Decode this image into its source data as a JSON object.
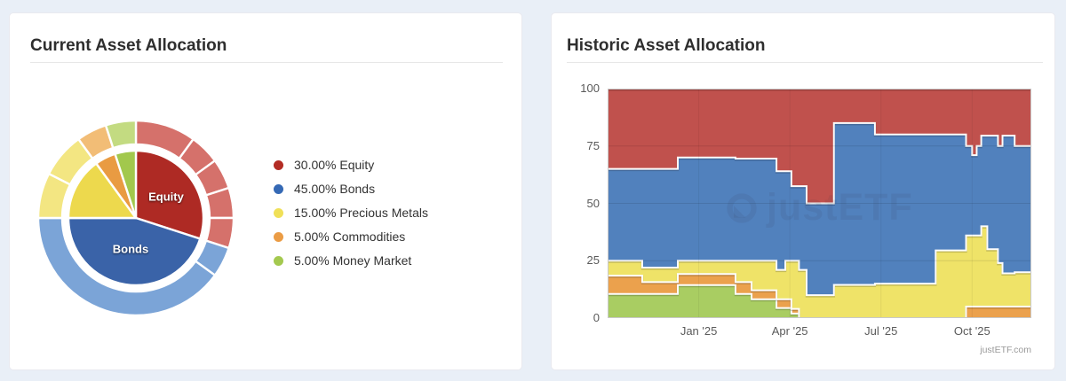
{
  "left_card": {
    "title": "Current Asset Allocation"
  },
  "right_card": {
    "title": "Historic Asset Allocation",
    "watermark": "justETF",
    "attribution": "justETF.com"
  },
  "chart_data": [
    {
      "type": "pie",
      "title": "Current Asset Allocation",
      "style": "sunburst-donut",
      "slices": [
        {
          "label": "Equity",
          "pct": 30,
          "legend_label": "30.00% Equity",
          "color": "#ae2a24",
          "light": "#d5716b",
          "legend_color": "#b32c24",
          "children_pct": [
            10,
            5,
            5,
            5,
            5
          ]
        },
        {
          "label": "Bonds",
          "pct": 45,
          "legend_label": "45.00% Bonds",
          "color": "#3a63a8",
          "light": "#7ba4d7",
          "legend_color": "#3569b5",
          "children_pct": [
            5,
            40
          ]
        },
        {
          "label": "Precious Metals",
          "pct": 15,
          "legend_label": "15.00% Precious Metals",
          "color": "#edd94d",
          "light": "#f3e682",
          "legend_color": "#f0e058",
          "children_pct": [
            7.5,
            7.5
          ]
        },
        {
          "label": "Commodities",
          "pct": 5,
          "legend_label": "5.00% Commodities",
          "color": "#e99b42",
          "light": "#f2bd76",
          "legend_color": "#eb9c45",
          "children_pct": [
            5
          ]
        },
        {
          "label": "Money Market",
          "pct": 5,
          "legend_label": "5.00% Money Market",
          "color": "#a2c84d",
          "light": "#c3db81",
          "legend_color": "#a4c94f",
          "children_pct": [
            5
          ]
        }
      ],
      "labels_shown_in_chart": [
        "Equity",
        "Bonds"
      ]
    },
    {
      "type": "area",
      "title": "Historic Asset Allocation",
      "stacked": true,
      "ylim": [
        0,
        100
      ],
      "xlim": [
        0,
        13.95
      ],
      "grid": true,
      "legend_position": "none",
      "yticks": [
        100,
        75,
        50,
        25,
        0
      ],
      "xticks": [
        {
          "x": 3,
          "label": "Jan '25"
        },
        {
          "x": 6,
          "label": "Apr '25"
        },
        {
          "x": 9,
          "label": "Jul '25"
        },
        {
          "x": 12,
          "label": "Oct '25"
        }
      ],
      "x": [
        0,
        1.14,
        1.14,
        2.31,
        2.31,
        4.21,
        4.21,
        4.74,
        4.74,
        5.56,
        5.56,
        5.85,
        5.85,
        6.05,
        6.05,
        6.3,
        6.3,
        6.55,
        6.55,
        7.45,
        7.45,
        8.8,
        8.8,
        10.8,
        10.8,
        11.8,
        11.8,
        12.0,
        12.0,
        12.15,
        12.15,
        12.3,
        12.3,
        12.5,
        12.5,
        12.85,
        12.85,
        13.0,
        13.0,
        13.4,
        13.4,
        13.95
      ],
      "series": [
        {
          "name": "Money Market",
          "color": "#a9cd62",
          "values": [
            10.5,
            10.5,
            10.5,
            10.5,
            14.4,
            14.4,
            10.5,
            10.5,
            8.2,
            8.2,
            4.4,
            4.4,
            4.4,
            4.4,
            2,
            2,
            0,
            0,
            0,
            0,
            0,
            0,
            0,
            0,
            0,
            0,
            0,
            0,
            0,
            0,
            0,
            0,
            0,
            0,
            0,
            0,
            0,
            0,
            0,
            0,
            0,
            0
          ]
        },
        {
          "name": "Commodities",
          "color": "#eba14d",
          "values": [
            8,
            8,
            5.2,
            5.2,
            4.8,
            4.8,
            5.2,
            5.2,
            3.9,
            3.9,
            3.8,
            3.8,
            3.8,
            3.8,
            2,
            2,
            0,
            0,
            0,
            0,
            0,
            0,
            0,
            0,
            0,
            0,
            5,
            5,
            5,
            5,
            5,
            5,
            5,
            5,
            5,
            5,
            5,
            5,
            5,
            5,
            5,
            5
          ]
        },
        {
          "name": "Precious Metals",
          "color": "#efe368",
          "values": [
            6.5,
            6.5,
            6.3,
            6.3,
            5.8,
            5.8,
            9.3,
            9.3,
            12.9,
            12.9,
            12.8,
            12.8,
            16.8,
            16.8,
            21,
            21,
            21,
            21,
            10,
            10,
            14.5,
            14.5,
            15,
            15,
            29.5,
            29.5,
            31,
            31,
            31,
            31,
            31,
            31,
            35,
            35,
            25,
            25,
            19,
            19,
            14.5,
            14.5,
            15,
            15
          ]
        },
        {
          "name": "Bonds",
          "color": "#5181bd",
          "values": [
            40,
            40,
            43,
            43,
            45,
            45,
            44.5,
            44.5,
            44.5,
            44.5,
            43,
            43,
            39,
            39,
            32.5,
            32.5,
            36.5,
            36.5,
            40,
            40,
            70.5,
            70.5,
            65,
            65,
            50.5,
            50.5,
            39,
            39,
            35,
            35,
            39,
            39,
            39.5,
            39.5,
            49.5,
            49.5,
            51,
            51,
            60,
            60,
            55,
            55
          ]
        },
        {
          "name": "Equity",
          "color": "#c0514d",
          "values": [
            35,
            35,
            35,
            35,
            30,
            30,
            30.5,
            30.5,
            30.5,
            30.5,
            36,
            36,
            36,
            36,
            42.5,
            42.5,
            42.5,
            42.5,
            50,
            50,
            15,
            15,
            20,
            20,
            20,
            20,
            25,
            25,
            29,
            29,
            25,
            25,
            20.5,
            20.5,
            20.5,
            20.5,
            25,
            25,
            20.5,
            20.5,
            25,
            25
          ]
        }
      ]
    }
  ]
}
